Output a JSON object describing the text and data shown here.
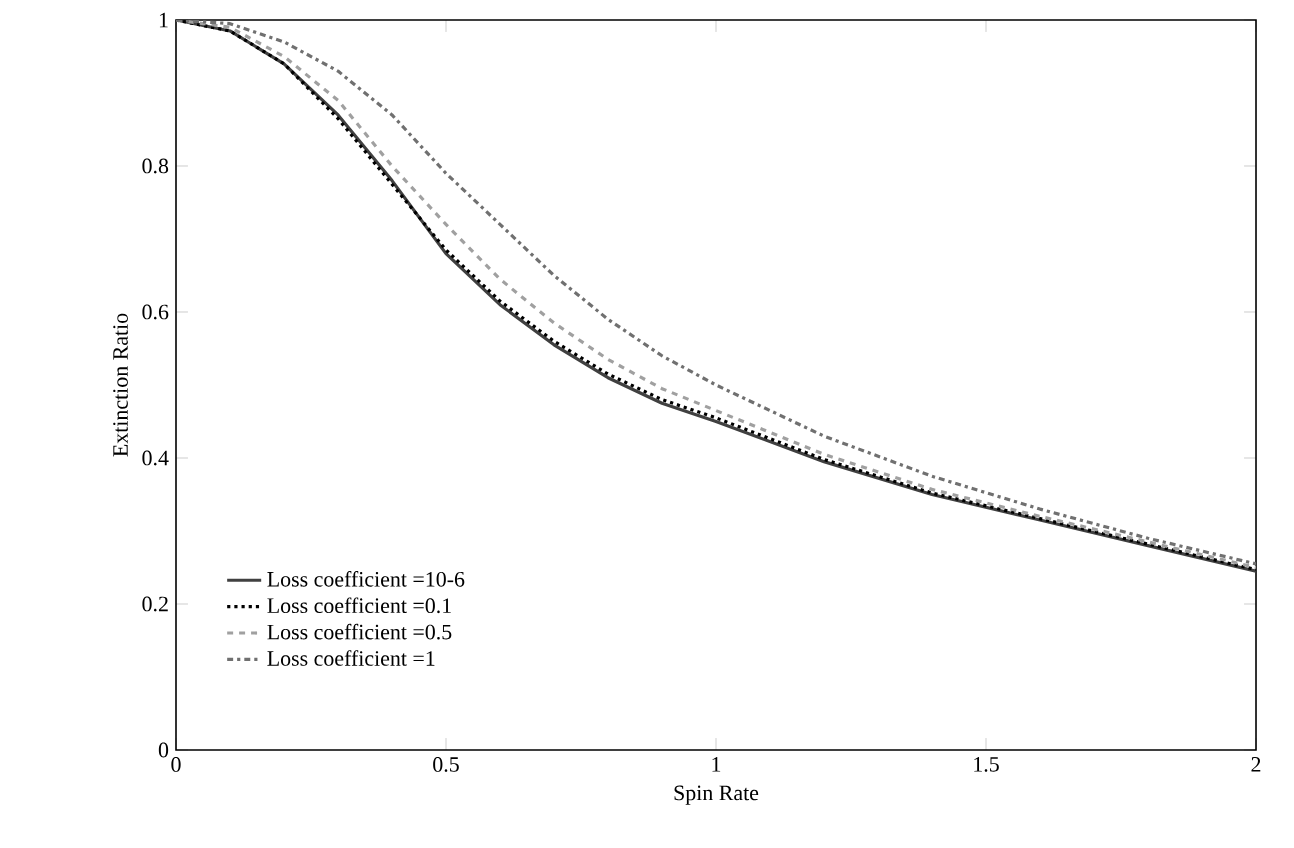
{
  "chart_data": {
    "type": "line",
    "xlabel": "Spin Rate",
    "ylabel": "Extinction Ratio",
    "xlim": [
      0,
      2
    ],
    "ylim": [
      0,
      1
    ],
    "xticks": [
      0,
      0.5,
      1,
      1.5,
      2
    ],
    "yticks": [
      0,
      0.2,
      0.4,
      0.6,
      0.8,
      1
    ],
    "grid": false,
    "legend": "bottom left",
    "marker": "none",
    "x": [
      0,
      0.1,
      0.2,
      0.3,
      0.4,
      0.5,
      0.6,
      0.7,
      0.8,
      0.9,
      1.0,
      1.2,
      1.4,
      1.6,
      1.8,
      2.0
    ],
    "series": [
      {
        "name": "Loss coefficient =10-6",
        "color": "#404040",
        "line_style": "solid",
        "values": [
          1,
          0.985,
          0.94,
          0.87,
          0.78,
          0.68,
          0.61,
          0.555,
          0.51,
          0.475,
          0.45,
          0.395,
          0.35,
          0.315,
          0.28,
          0.245
        ]
      },
      {
        "name": "Loss coefficient =0.1",
        "color": "#000000",
        "line_style": "dotted",
        "values": [
          1,
          0.985,
          0.94,
          0.865,
          0.775,
          0.685,
          0.615,
          0.56,
          0.515,
          0.48,
          0.455,
          0.398,
          0.352,
          0.317,
          0.282,
          0.247
        ]
      },
      {
        "name": "Loss coefficient =0.5",
        "color": "#a0a0a0",
        "line_style": "dashed",
        "values": [
          1,
          0.99,
          0.95,
          0.89,
          0.8,
          0.72,
          0.645,
          0.585,
          0.535,
          0.495,
          0.465,
          0.405,
          0.357,
          0.32,
          0.285,
          0.25
        ]
      },
      {
        "name": "Loss coefficient =1",
        "color": "#707070",
        "line_style": "dashdot",
        "values": [
          1,
          0.995,
          0.97,
          0.93,
          0.87,
          0.79,
          0.72,
          0.65,
          0.59,
          0.54,
          0.5,
          0.43,
          0.375,
          0.33,
          0.29,
          0.255
        ]
      }
    ]
  }
}
